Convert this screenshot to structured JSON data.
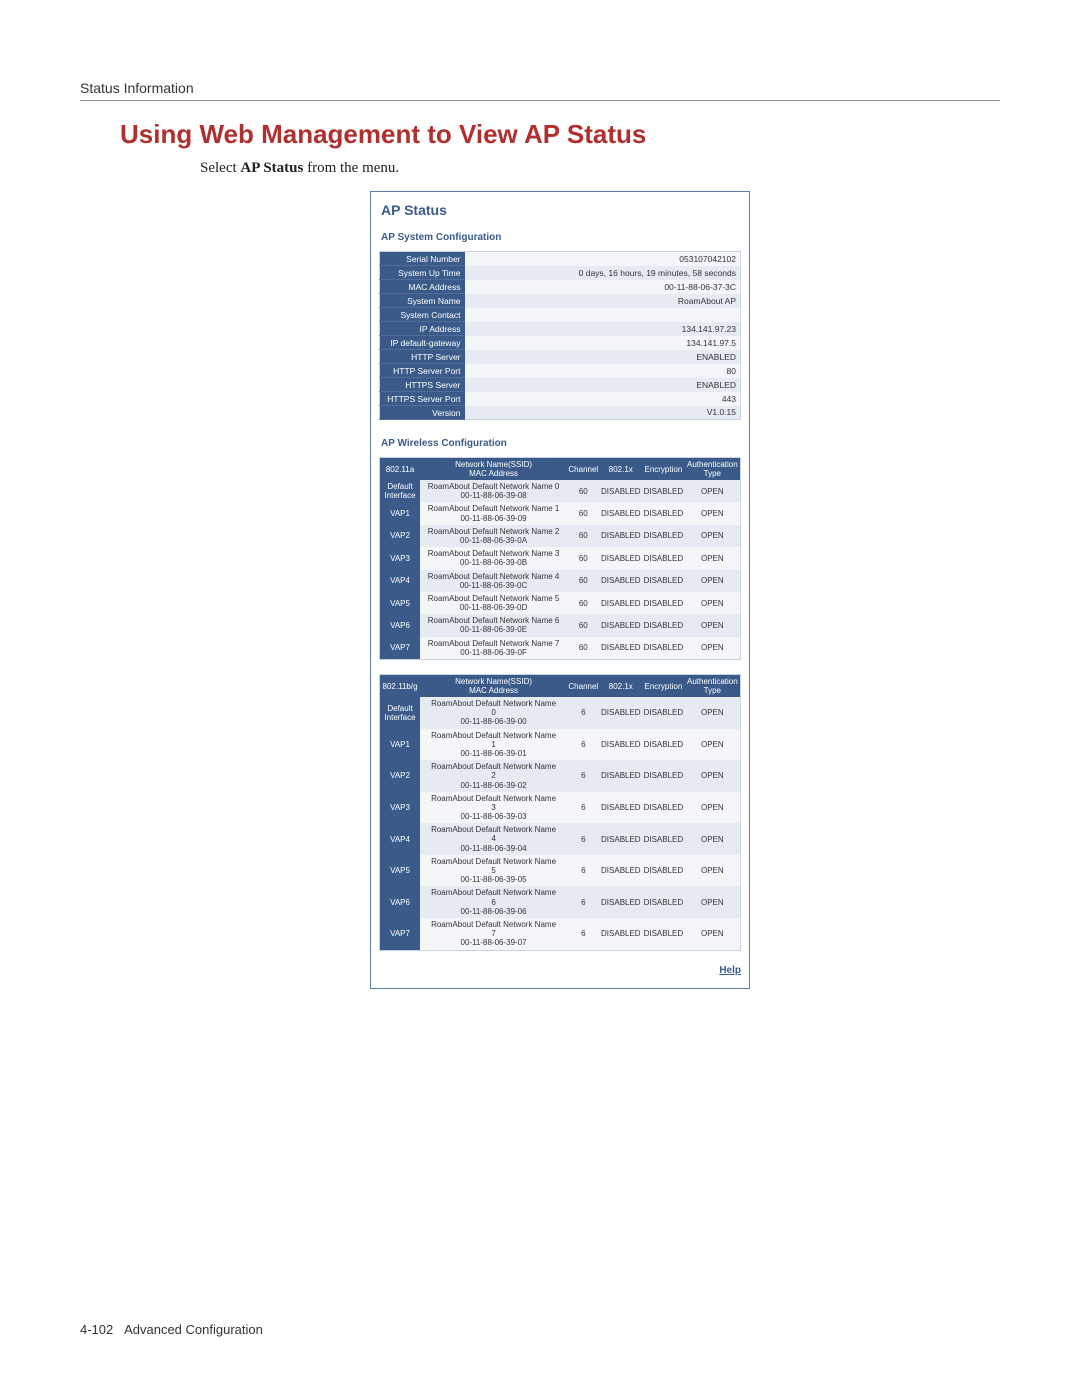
{
  "header_label": "Status Information",
  "section_title": "Using Web Management to View AP Status",
  "instruction_prefix": "Select ",
  "instruction_bold": "AP Status",
  "instruction_suffix": " from the menu.",
  "ap_title": "AP Status",
  "sys_cfg_title": "AP System Configuration",
  "wireless_cfg_title": "AP Wireless Configuration",
  "help_label": "Help",
  "footer_page": "4-102",
  "footer_text": "Advanced Configuration",
  "sys_rows": [
    {
      "key": "Serial Number",
      "val": "053107042102"
    },
    {
      "key": "System Up Time",
      "val": "0 days, 16 hours, 19 minutes, 58 seconds"
    },
    {
      "key": "MAC Address",
      "val": "00-11-88-06-37-3C"
    },
    {
      "key": "System Name",
      "val": "RoamAbout AP"
    },
    {
      "key": "System Contact",
      "val": ""
    },
    {
      "key": "IP Address",
      "val": "134.141.97.23"
    },
    {
      "key": "IP default-gateway",
      "val": "134.141.97.5"
    },
    {
      "key": "HTTP Server",
      "val": "ENABLED"
    },
    {
      "key": "HTTP Server Port",
      "val": "80"
    },
    {
      "key": "HTTPS Server",
      "val": "ENABLED"
    },
    {
      "key": "HTTPS Server Port",
      "val": "443"
    },
    {
      "key": "Version",
      "val": "V1.0.15"
    }
  ],
  "wt_headers": {
    "ssid": "Network Name(SSID)\nMAC Address",
    "channel": "Channel",
    "dot1x": "802.1x",
    "enc": "Encryption",
    "auth": "Authentication\nType"
  },
  "band_a": "802.11a",
  "band_bg": "802.11b/g",
  "rows_a": [
    {
      "iface": "Default\nInterface",
      "ssid": "RoamAbout Default Network Name 0",
      "mac": "00-11-88-06-39-08",
      "ch": "60",
      "dot1x": "DISABLED",
      "enc": "DISABLED",
      "auth": "OPEN"
    },
    {
      "iface": "VAP1",
      "ssid": "RoamAbout Default Network Name 1",
      "mac": "00-11-88-06-39-09",
      "ch": "60",
      "dot1x": "DISABLED",
      "enc": "DISABLED",
      "auth": "OPEN"
    },
    {
      "iface": "VAP2",
      "ssid": "RoamAbout Default Network Name 2",
      "mac": "00-11-88-06-39-0A",
      "ch": "60",
      "dot1x": "DISABLED",
      "enc": "DISABLED",
      "auth": "OPEN"
    },
    {
      "iface": "VAP3",
      "ssid": "RoamAbout Default Network Name 3",
      "mac": "00-11-88-06-39-0B",
      "ch": "60",
      "dot1x": "DISABLED",
      "enc": "DISABLED",
      "auth": "OPEN"
    },
    {
      "iface": "VAP4",
      "ssid": "RoamAbout Default Network Name 4",
      "mac": "00-11-88-06-39-0C",
      "ch": "60",
      "dot1x": "DISABLED",
      "enc": "DISABLED",
      "auth": "OPEN"
    },
    {
      "iface": "VAP5",
      "ssid": "RoamAbout Default Network Name 5",
      "mac": "00-11-88-06-39-0D",
      "ch": "60",
      "dot1x": "DISABLED",
      "enc": "DISABLED",
      "auth": "OPEN"
    },
    {
      "iface": "VAP6",
      "ssid": "RoamAbout Default Network Name 6",
      "mac": "00-11-88-06-39-0E",
      "ch": "60",
      "dot1x": "DISABLED",
      "enc": "DISABLED",
      "auth": "OPEN"
    },
    {
      "iface": "VAP7",
      "ssid": "RoamAbout Default Network Name 7",
      "mac": "00-11-88-06-39-0F",
      "ch": "60",
      "dot1x": "DISABLED",
      "enc": "DISABLED",
      "auth": "OPEN"
    }
  ],
  "rows_bg": [
    {
      "iface": "Default\nInterface",
      "ssid": "RoamAbout Default Network Name\n0",
      "mac": "00-11-88-06-39-00",
      "ch": "6",
      "dot1x": "DISABLED",
      "enc": "DISABLED",
      "auth": "OPEN"
    },
    {
      "iface": "VAP1",
      "ssid": "RoamAbout Default Network Name\n1",
      "mac": "00-11-88-06-39-01",
      "ch": "6",
      "dot1x": "DISABLED",
      "enc": "DISABLED",
      "auth": "OPEN"
    },
    {
      "iface": "VAP2",
      "ssid": "RoamAbout Default Network Name\n2",
      "mac": "00-11-88-06-39-02",
      "ch": "6",
      "dot1x": "DISABLED",
      "enc": "DISABLED",
      "auth": "OPEN"
    },
    {
      "iface": "VAP3",
      "ssid": "RoamAbout Default Network Name\n3",
      "mac": "00-11-88-06-39-03",
      "ch": "6",
      "dot1x": "DISABLED",
      "enc": "DISABLED",
      "auth": "OPEN"
    },
    {
      "iface": "VAP4",
      "ssid": "RoamAbout Default Network Name\n4",
      "mac": "00-11-88-06-39-04",
      "ch": "6",
      "dot1x": "DISABLED",
      "enc": "DISABLED",
      "auth": "OPEN"
    },
    {
      "iface": "VAP5",
      "ssid": "RoamAbout Default Network Name\n5",
      "mac": "00-11-88-06-39-05",
      "ch": "6",
      "dot1x": "DISABLED",
      "enc": "DISABLED",
      "auth": "OPEN"
    },
    {
      "iface": "VAP6",
      "ssid": "RoamAbout Default Network Name\n6",
      "mac": "00-11-88-06-39-06",
      "ch": "6",
      "dot1x": "DISABLED",
      "enc": "DISABLED",
      "auth": "OPEN"
    },
    {
      "iface": "VAP7",
      "ssid": "RoamAbout Default Network Name\n7",
      "mac": "00-11-88-06-39-07",
      "ch": "6",
      "dot1x": "DISABLED",
      "enc": "DISABLED",
      "auth": "OPEN"
    }
  ]
}
